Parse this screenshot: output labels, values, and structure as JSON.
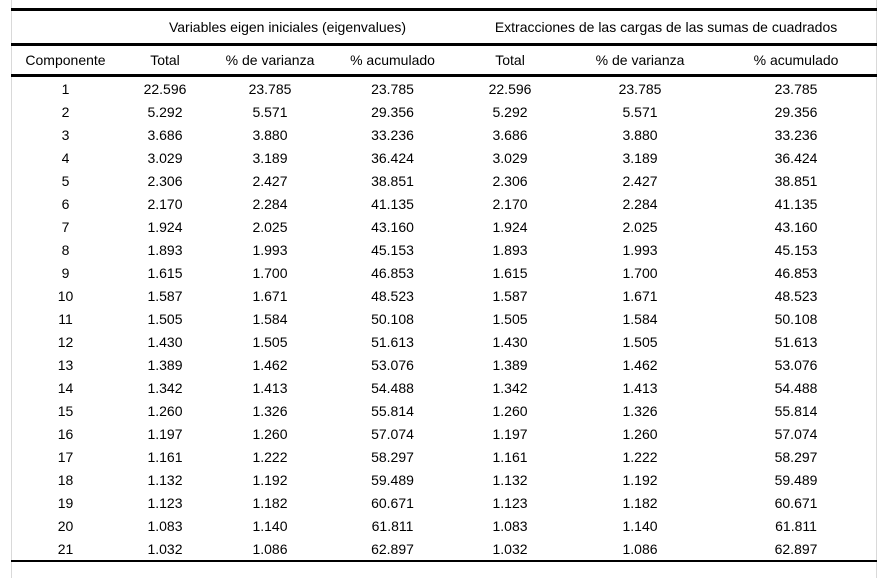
{
  "table": {
    "name": "varianza-total-explicada",
    "groups": [
      {
        "title": "Variables eigen iniciales (eigenvalues)",
        "colspan": 3
      },
      {
        "title": "Extracciones de las cargas de las sumas de cuadrados",
        "colspan": 3
      }
    ],
    "columns": [
      "Componente",
      "Total",
      "% de varianza",
      "% acumulado",
      "Total",
      "% de varianza",
      "% acumulado"
    ],
    "rows": [
      [
        "1",
        "22.596",
        "23.785",
        "23.785",
        "22.596",
        "23.785",
        "23.785"
      ],
      [
        "2",
        "5.292",
        "5.571",
        "29.356",
        "5.292",
        "5.571",
        "29.356"
      ],
      [
        "3",
        "3.686",
        "3.880",
        "33.236",
        "3.686",
        "3.880",
        "33.236"
      ],
      [
        "4",
        "3.029",
        "3.189",
        "36.424",
        "3.029",
        "3.189",
        "36.424"
      ],
      [
        "5",
        "2.306",
        "2.427",
        "38.851",
        "2.306",
        "2.427",
        "38.851"
      ],
      [
        "6",
        "2.170",
        "2.284",
        "41.135",
        "2.170",
        "2.284",
        "41.135"
      ],
      [
        "7",
        "1.924",
        "2.025",
        "43.160",
        "1.924",
        "2.025",
        "43.160"
      ],
      [
        "8",
        "1.893",
        "1.993",
        "45.153",
        "1.893",
        "1.993",
        "45.153"
      ],
      [
        "9",
        "1.615",
        "1.700",
        "46.853",
        "1.615",
        "1.700",
        "46.853"
      ],
      [
        "10",
        "1.587",
        "1.671",
        "48.523",
        "1.587",
        "1.671",
        "48.523"
      ],
      [
        "11",
        "1.505",
        "1.584",
        "50.108",
        "1.505",
        "1.584",
        "50.108"
      ],
      [
        "12",
        "1.430",
        "1.505",
        "51.613",
        "1.430",
        "1.505",
        "51.613"
      ],
      [
        "13",
        "1.389",
        "1.462",
        "53.076",
        "1.389",
        "1.462",
        "53.076"
      ],
      [
        "14",
        "1.342",
        "1.413",
        "54.488",
        "1.342",
        "1.413",
        "54.488"
      ],
      [
        "15",
        "1.260",
        "1.326",
        "55.814",
        "1.260",
        "1.326",
        "55.814"
      ],
      [
        "16",
        "1.197",
        "1.260",
        "57.074",
        "1.197",
        "1.260",
        "57.074"
      ],
      [
        "17",
        "1.161",
        "1.222",
        "58.297",
        "1.161",
        "1.222",
        "58.297"
      ],
      [
        "18",
        "1.132",
        "1.192",
        "59.489",
        "1.132",
        "1.192",
        "59.489"
      ],
      [
        "19",
        "1.123",
        "1.182",
        "60.671",
        "1.123",
        "1.182",
        "60.671"
      ],
      [
        "20",
        "1.083",
        "1.140",
        "61.811",
        "1.083",
        "1.140",
        "61.811"
      ],
      [
        "21",
        "1.032",
        "1.086",
        "62.897",
        "1.032",
        "1.086",
        "62.897"
      ]
    ]
  }
}
